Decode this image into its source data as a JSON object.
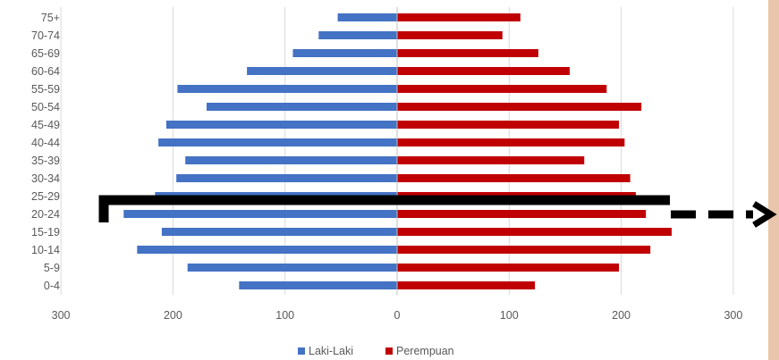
{
  "chart_data": {
    "type": "bar",
    "orientation": "horizontal",
    "title": "",
    "xlabel": "",
    "ylabel": "",
    "categories": [
      "75+",
      "70-74",
      "65-69",
      "60-64",
      "55-59",
      "50-54",
      "45-49",
      "40-44",
      "35-39",
      "30-34",
      "25-29",
      "20-24",
      "15-19",
      "10-14",
      "5-9",
      "0-4"
    ],
    "series": [
      {
        "name": "Laki-Laki",
        "color": "#4472c4",
        "values": [
          -53,
          -70,
          -93,
          -134,
          -196,
          -170,
          -206,
          -213,
          -189,
          -197,
          -216,
          -244,
          -210,
          -232,
          -187,
          -141
        ]
      },
      {
        "name": "Perempuan",
        "color": "#c00000",
        "values": [
          110,
          94,
          126,
          154,
          187,
          218,
          198,
          203,
          167,
          208,
          213,
          222,
          245,
          226,
          198,
          123
        ]
      }
    ],
    "xlim": [
      -300,
      300
    ],
    "xticks": [
      -300,
      -200,
      -100,
      0,
      100,
      200,
      300
    ],
    "xtick_labels": [
      "300",
      "200",
      "100",
      "0",
      "100",
      "200",
      "300"
    ],
    "grid": "vertical",
    "legend": "bottom"
  },
  "annotation": {
    "shape": "bracket-with-dashed-arrow",
    "color": "#000000",
    "category_span": [
      "25-29",
      "20-24"
    ]
  },
  "decor": {
    "side_strip_color": "#e9c6ab"
  }
}
